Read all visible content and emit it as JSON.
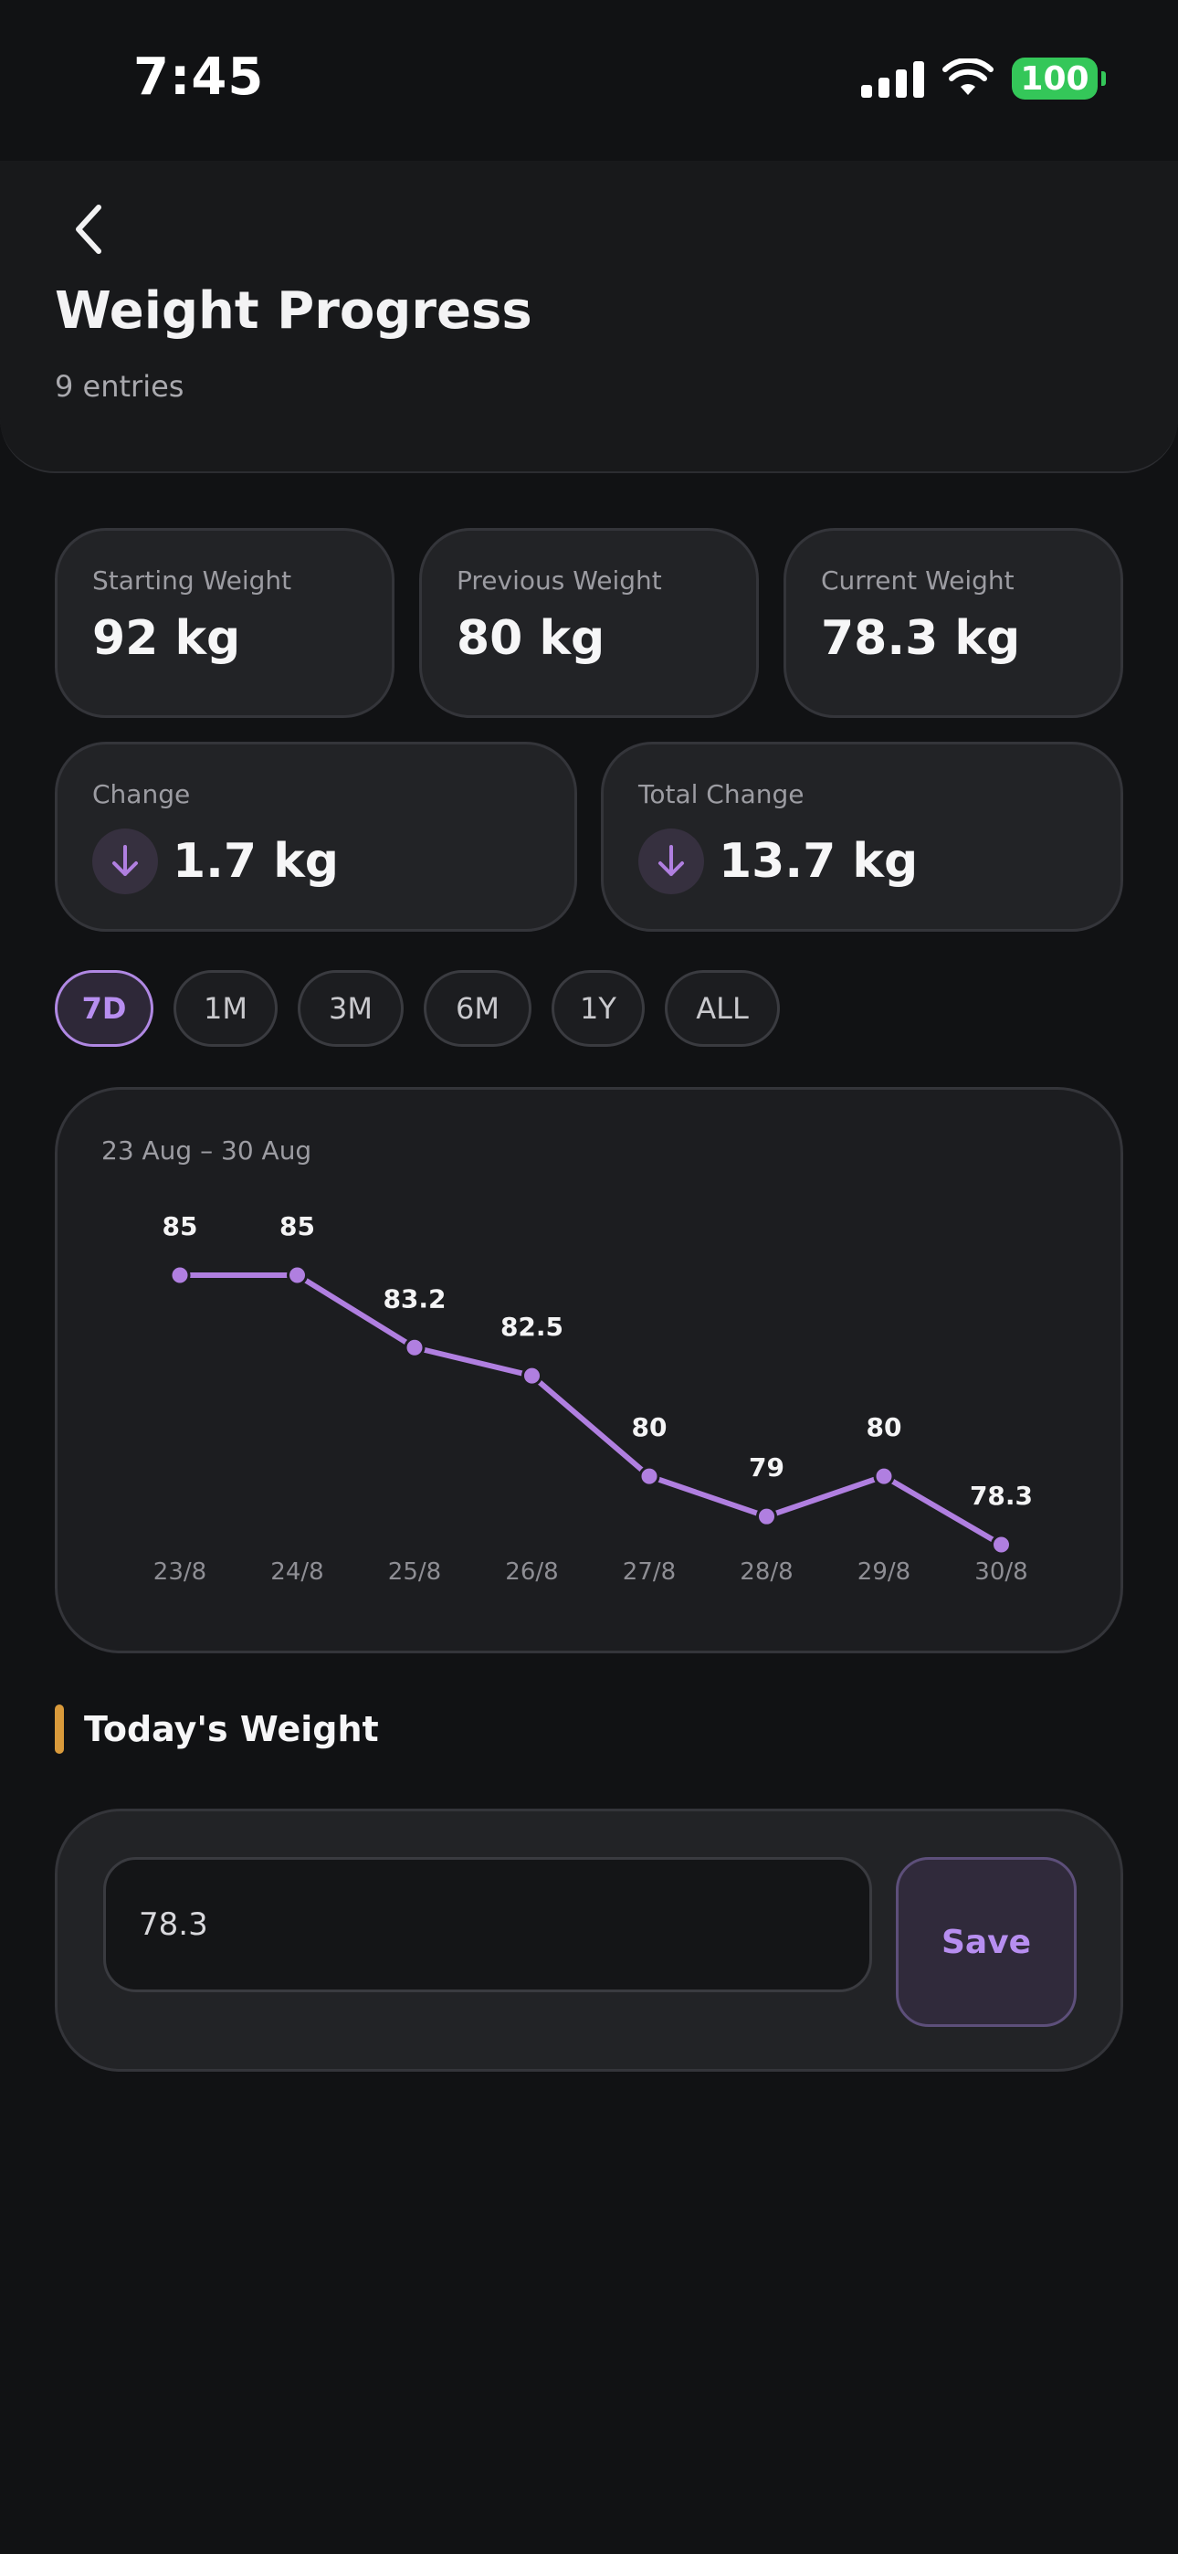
{
  "status_bar": {
    "time": "7:45",
    "battery": "100",
    "icons": [
      "signal-icon",
      "wifi-icon",
      "battery-icon"
    ]
  },
  "header": {
    "title": "Weight Progress",
    "subtitle": "9 entries",
    "back_icon": "chevron-left-icon"
  },
  "stats": {
    "starting": {
      "label": "Starting Weight",
      "value": "92 kg"
    },
    "previous": {
      "label": "Previous Weight",
      "value": "80 kg"
    },
    "current": {
      "label": "Current Weight",
      "value": "78.3 kg"
    },
    "change": {
      "label": "Change",
      "value": "1.7 kg",
      "icon": "arrow-down-icon"
    },
    "total_change": {
      "label": "Total Change",
      "value": "13.7 kg",
      "icon": "arrow-down-icon"
    }
  },
  "range_tabs": [
    {
      "label": "7D",
      "active": true
    },
    {
      "label": "1M",
      "active": false
    },
    {
      "label": "3M",
      "active": false
    },
    {
      "label": "6M",
      "active": false
    },
    {
      "label": "1Y",
      "active": false
    },
    {
      "label": "ALL",
      "active": false
    }
  ],
  "chart_range_label": "23 Aug – 30 Aug",
  "chart_data": {
    "type": "line",
    "categories": [
      "23/8",
      "24/8",
      "25/8",
      "26/8",
      "27/8",
      "28/8",
      "29/8",
      "30/8"
    ],
    "series": [
      {
        "values": [
          85,
          85,
          83.2,
          82.5,
          80,
          79,
          80,
          78.3
        ]
      }
    ],
    "value_labels": [
      "85",
      "85",
      "83.2",
      "82.5",
      "80",
      "79",
      "80",
      "78.3"
    ],
    "color": "#b07fe0",
    "grid": false
  },
  "today": {
    "title": "Today's Weight",
    "input_value": "78.3",
    "save_label": "Save"
  },
  "colors": {
    "accent": "#b78ef0",
    "section_marker": "#d99a3b",
    "battery": "#34c759"
  }
}
